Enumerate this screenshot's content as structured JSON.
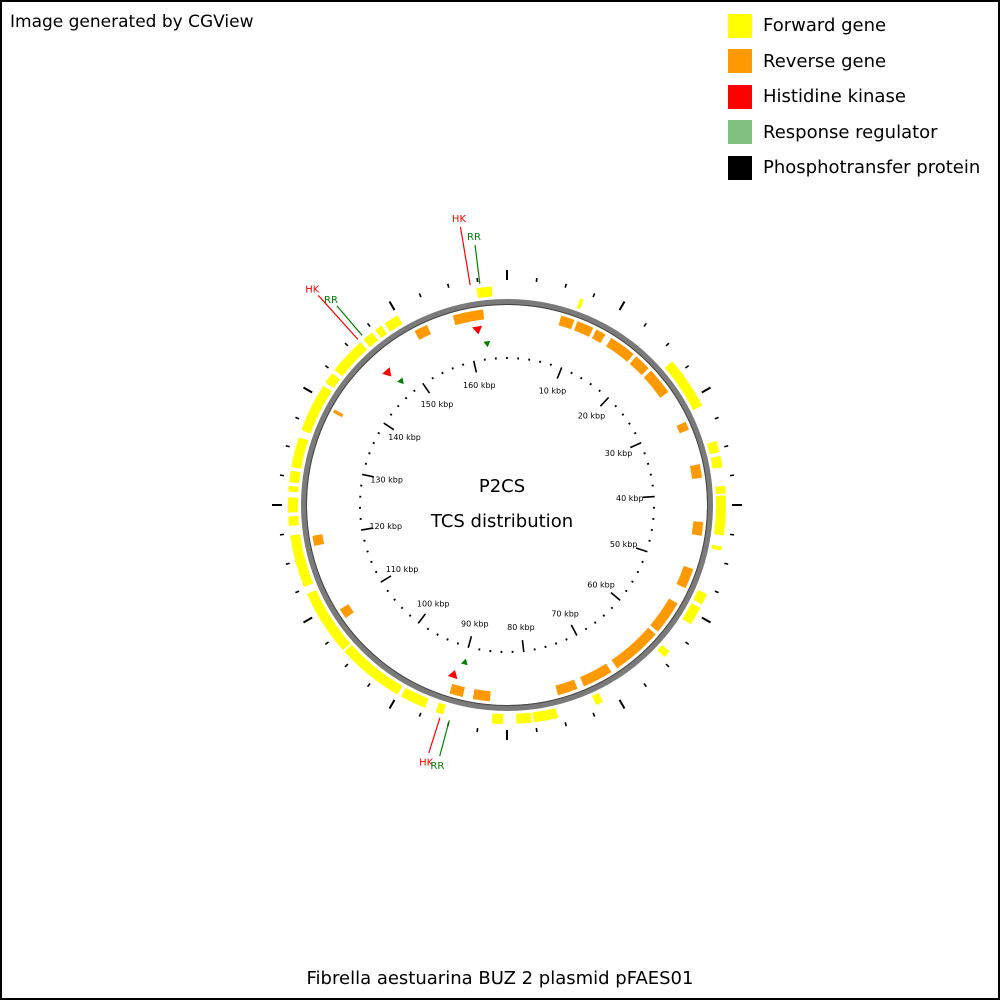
{
  "credit": "Image generated by CGView",
  "legend": [
    {
      "label": "Forward gene",
      "color": "#ffff00"
    },
    {
      "label": "Reverse gene",
      "color": "#ff9900"
    },
    {
      "label": "Histidine kinase",
      "color": "#ff0000"
    },
    {
      "label": "Response regulator",
      "color": "#80c080"
    },
    {
      "label": "Phosphotransfer protein",
      "color": "#000000"
    }
  ],
  "center_title": "P2CS",
  "center_subtitle": "TCS distribution",
  "footer": "Fibrella aestuarina BUZ 2 plasmid pFAES01",
  "colors": {
    "forward": "#ffff00",
    "reverse": "#ff9900",
    "hk": "#ff0000",
    "rr": "#008000",
    "backbone": "#7a7a7a",
    "ticks": "#000000"
  },
  "genome": {
    "length_kbp": 166,
    "tick_labels": [
      "10 kbp",
      "20 kbp",
      "30 kbp",
      "40 kbp",
      "50 kbp",
      "60 kbp",
      "70 kbp",
      "80 kbp",
      "90 kbp",
      "100 kbp",
      "110 kbp",
      "120 kbp",
      "130 kbp",
      "140 kbp",
      "150 kbp",
      "160 kbp"
    ],
    "tick_values_kbp": [
      10,
      20,
      30,
      40,
      50,
      60,
      70,
      80,
      90,
      100,
      110,
      120,
      130,
      140,
      150,
      160
    ]
  },
  "forward_genes_deg": [
    [
      352,
      356
    ],
    [
      19.5,
      20.5
    ],
    [
      49,
      63
    ],
    [
      73,
      76
    ],
    [
      77,
      80
    ],
    [
      85,
      87
    ],
    [
      87.5,
      98
    ],
    [
      101,
      102
    ],
    [
      114,
      117
    ],
    [
      118,
      123
    ],
    [
      132,
      134
    ],
    [
      154,
      156
    ],
    [
      166.5,
      173
    ],
    [
      173.5,
      177.5
    ],
    [
      181,
      184
    ],
    [
      197,
      199
    ],
    [
      202,
      209
    ],
    [
      210,
      228
    ],
    [
      228.5,
      246
    ],
    [
      248,
      262
    ],
    [
      264.5,
      267
    ],
    [
      268,
      272
    ],
    [
      273.5,
      275
    ],
    [
      276,
      279
    ],
    [
      280,
      288
    ],
    [
      290,
      303
    ],
    [
      304,
      307
    ],
    [
      308,
      318
    ],
    [
      319,
      322
    ],
    [
      323,
      325
    ],
    [
      326,
      330
    ]
  ],
  "reverse_genes_deg": [
    [
      332,
      336
    ],
    [
      344,
      353
    ],
    [
      16,
      20
    ],
    [
      21,
      26
    ],
    [
      27,
      30
    ],
    [
      32,
      40
    ],
    [
      41,
      46
    ],
    [
      47,
      55
    ],
    [
      65,
      67.5
    ],
    [
      78,
      82
    ],
    [
      95,
      99
    ],
    [
      109,
      115
    ],
    [
      120,
      130
    ],
    [
      131,
      146
    ],
    [
      148,
      157
    ],
    [
      159,
      165
    ],
    [
      185,
      190
    ],
    [
      193,
      197
    ],
    [
      235,
      238
    ],
    [
      258,
      261
    ],
    [
      298,
      299
    ]
  ],
  "tcs_pairs": [
    {
      "hk": "HK",
      "rr": "RR",
      "hk_deg": 350.5,
      "rr_deg": 353.0
    },
    {
      "hk": "HK",
      "rr": "RR",
      "hk_deg": 318.0,
      "rr_deg": 319.5
    },
    {
      "hk": "HK",
      "rr": "RR",
      "hk_deg": 197.5,
      "rr_deg": 195.0
    }
  ]
}
